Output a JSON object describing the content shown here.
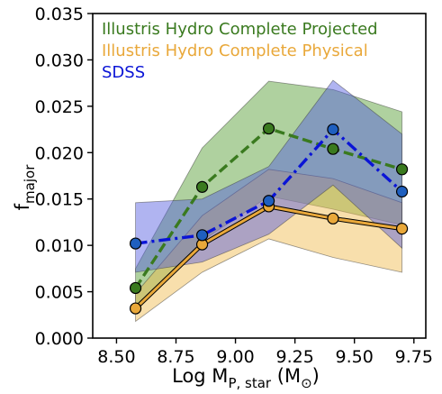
{
  "chart_data": {
    "type": "line",
    "title": "",
    "xlabel_main": "Log M",
    "xlabel_sub": "P, star",
    "xlabel_unit_open": " (M",
    "xlabel_unit_sub": "⊙",
    "xlabel_unit_close": ")",
    "ylabel_main": "f",
    "ylabel_sub": "major",
    "xlim": [
      8.4,
      9.8
    ],
    "ylim": [
      0.0,
      0.035
    ],
    "xticks": [
      8.5,
      8.75,
      9.0,
      9.25,
      9.5,
      9.75
    ],
    "xtick_labels": [
      "8.50",
      "8.75",
      "9.00",
      "9.25",
      "9.50",
      "9.75"
    ],
    "yticks": [
      0.0,
      0.005,
      0.01,
      0.015,
      0.02,
      0.025,
      0.03,
      0.035
    ],
    "ytick_labels": [
      "0.000",
      "0.005",
      "0.010",
      "0.015",
      "0.020",
      "0.025",
      "0.030",
      "0.035"
    ],
    "legend_position": "top-left",
    "series": [
      {
        "name": "Illustris Hydro Complete Projected",
        "color": "#3a7a1f",
        "fill_color": "#4d9a2a",
        "line_style": "dashed",
        "marker": "circle",
        "x": [
          8.58,
          8.86,
          9.14,
          9.41,
          9.7
        ],
        "y": [
          0.0054,
          0.0163,
          0.0226,
          0.0204,
          0.0182
        ],
        "band_upper": [
          0.0075,
          0.0205,
          0.0277,
          0.0268,
          0.0244
        ],
        "band_lower": [
          0.003,
          0.0105,
          0.0153,
          0.0139,
          0.0122
        ]
      },
      {
        "name": "Illustris Hydro Complete Physical",
        "color": "#e9a83a",
        "fill_color": "#f0b848",
        "line_style": "solid",
        "marker": "circle",
        "x": [
          8.58,
          8.86,
          9.14,
          9.41,
          9.7
        ],
        "y": [
          0.0032,
          0.0101,
          0.0142,
          0.0129,
          0.0118
        ],
        "band_upper": [
          0.0048,
          0.0132,
          0.0182,
          0.0172,
          0.0146
        ],
        "band_lower": [
          0.0018,
          0.0071,
          0.0107,
          0.0087,
          0.0071
        ]
      },
      {
        "name": "SDSS",
        "color": "#0a14d6",
        "fill_color": "#4f58e0",
        "line_style": "dashdot",
        "marker": "circle",
        "marker_fill": "#1f5fbf",
        "x": [
          8.58,
          8.86,
          9.14,
          9.41,
          9.7
        ],
        "y": [
          0.0102,
          0.0111,
          0.0148,
          0.0225,
          0.0158
        ],
        "band_upper": [
          0.0146,
          0.015,
          0.0185,
          0.0278,
          0.022
        ],
        "band_lower": [
          0.0071,
          0.0082,
          0.0112,
          0.0165,
          0.0097
        ]
      }
    ]
  }
}
